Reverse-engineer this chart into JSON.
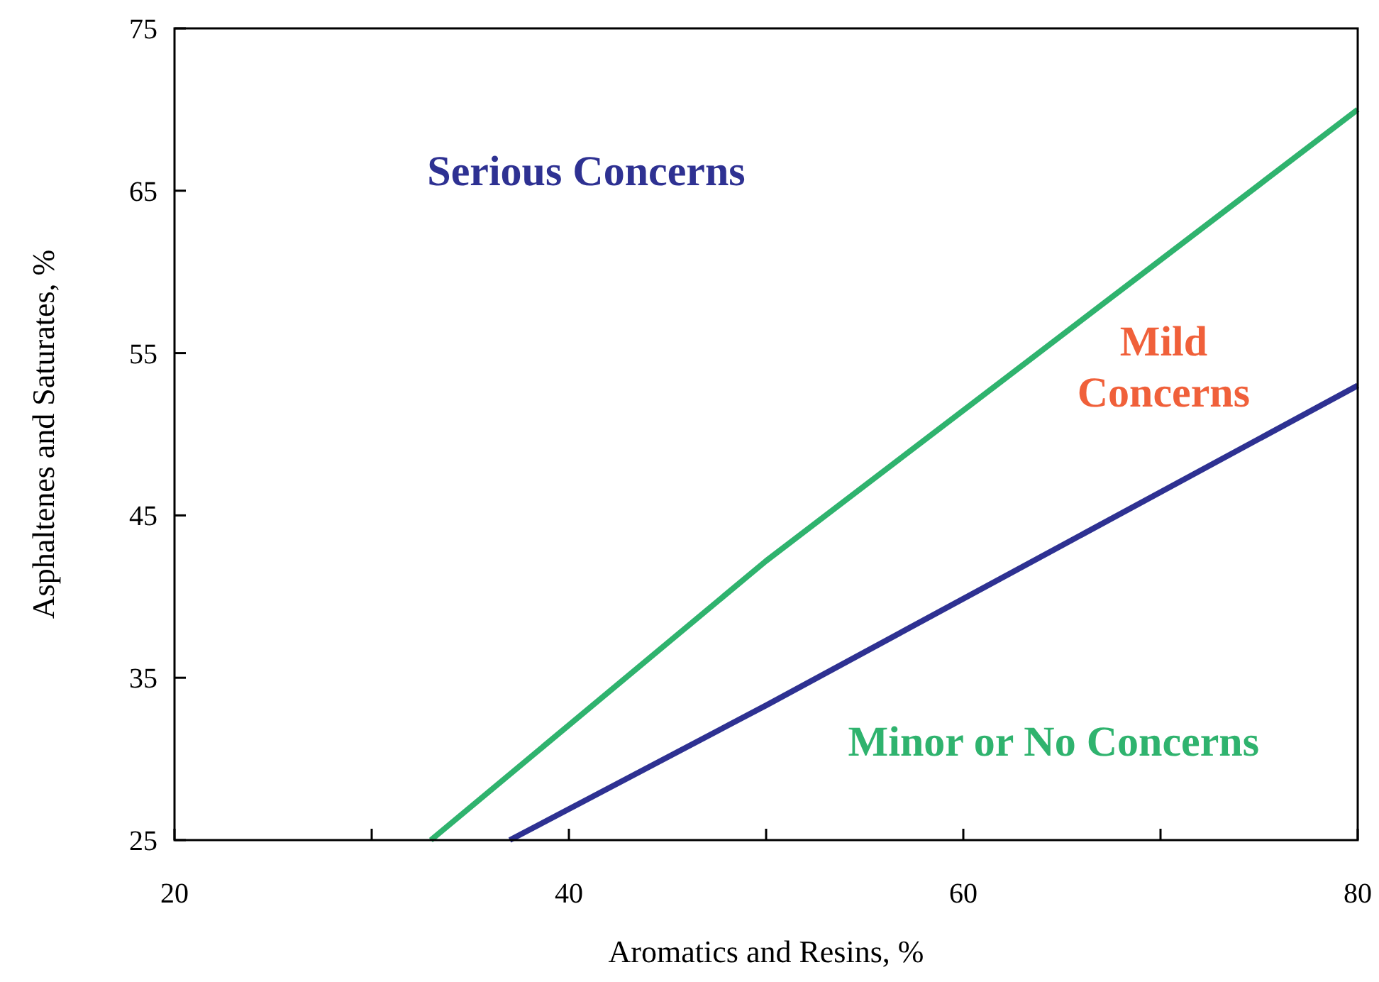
{
  "chart_data": {
    "type": "line",
    "xlabel": "Aromatics and Resins, %",
    "ylabel": "Asphaltenes and Saturates, %",
    "xlim": [
      20,
      80
    ],
    "ylim": [
      25,
      75
    ],
    "xticks": [
      20,
      {
        "value": 30,
        "label": null
      },
      40,
      {
        "value": 50,
        "label": null
      },
      60,
      {
        "value": 70,
        "label": null
      },
      80
    ],
    "yticks": [
      25,
      35,
      45,
      55,
      65,
      75
    ],
    "grid": false,
    "marker": "none",
    "line_style": "solid",
    "series": [
      {
        "color": "#2fb36e",
        "x": [
          33,
          50,
          80
        ],
        "values": [
          25,
          42.2,
          70
        ]
      },
      {
        "color": "#2e3192",
        "x": [
          37,
          50,
          80
        ],
        "values": [
          25,
          33.3,
          53
        ]
      }
    ],
    "annotations": [
      "Serious Concerns",
      "Mild\nConcerns",
      "Minor or No Concerns"
    ]
  }
}
